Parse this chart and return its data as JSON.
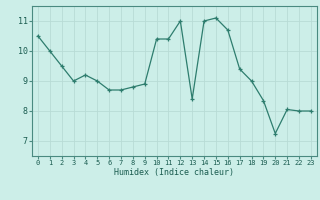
{
  "x": [
    0,
    1,
    2,
    3,
    4,
    5,
    6,
    7,
    8,
    9,
    10,
    11,
    12,
    13,
    14,
    15,
    16,
    17,
    18,
    19,
    20,
    21,
    22,
    23
  ],
  "y": [
    10.5,
    10.0,
    9.5,
    9.0,
    9.2,
    9.0,
    8.7,
    8.7,
    8.8,
    8.9,
    10.4,
    10.4,
    11.0,
    8.4,
    11.0,
    11.1,
    10.7,
    9.4,
    9.0,
    8.35,
    7.25,
    8.05,
    8.0,
    8.0
  ],
  "line_color": "#2e7d6e",
  "bg_color": "#cceee8",
  "grid_color": "#b8dbd5",
  "xlabel": "Humidex (Indice chaleur)",
  "ylim": [
    6.5,
    11.5
  ],
  "xlim": [
    -0.5,
    23.5
  ],
  "yticks": [
    7,
    8,
    9,
    10,
    11
  ],
  "xticks": [
    0,
    1,
    2,
    3,
    4,
    5,
    6,
    7,
    8,
    9,
    10,
    11,
    12,
    13,
    14,
    15,
    16,
    17,
    18,
    19,
    20,
    21,
    22,
    23
  ],
  "xlabel_color": "#1a5c50",
  "tick_color": "#1a5c50",
  "spine_color": "#4a8a80"
}
